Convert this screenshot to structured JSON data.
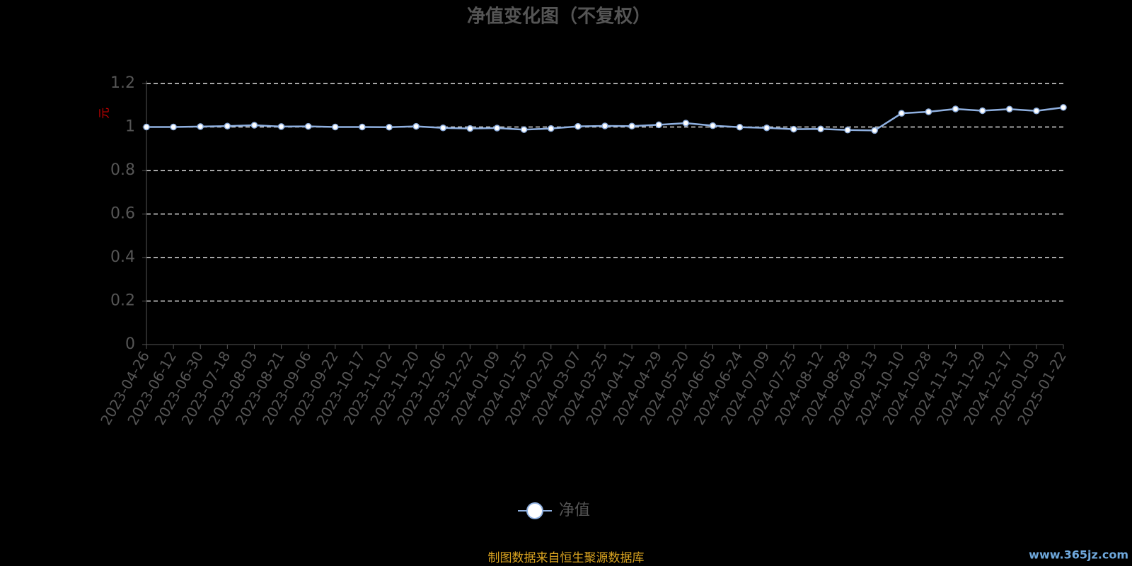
{
  "chart_data": {
    "type": "line",
    "title": "净值变化图（不复权）",
    "y_label": "元",
    "categories": [
      "2023-04-26",
      "2023-06-12",
      "2023-06-30",
      "2023-07-18",
      "2023-08-03",
      "2023-08-21",
      "2023-09-06",
      "2023-09-22",
      "2023-10-17",
      "2023-11-02",
      "2023-11-20",
      "2023-12-06",
      "2023-12-22",
      "2024-01-09",
      "2024-01-25",
      "2024-02-20",
      "2024-03-07",
      "2024-03-25",
      "2024-04-11",
      "2024-04-29",
      "2024-05-20",
      "2024-06-05",
      "2024-06-24",
      "2024-07-09",
      "2024-07-25",
      "2024-08-12",
      "2024-08-28",
      "2024-09-13",
      "2024-10-10",
      "2024-10-28",
      "2024-11-13",
      "2024-11-29",
      "2024-12-17",
      "2025-01-03",
      "2025-01-22"
    ],
    "series": [
      {
        "name": "净值",
        "color": "#8fb0e0",
        "values": [
          1.0,
          1.0,
          1.002,
          1.004,
          1.008,
          1.002,
          1.003,
          1.0,
          1.0,
          0.999,
          1.003,
          0.996,
          0.993,
          0.995,
          0.988,
          0.993,
          1.003,
          1.005,
          1.004,
          1.01,
          1.018,
          1.006,
          0.999,
          0.996,
          0.99,
          0.991,
          0.986,
          0.984,
          1.063,
          1.07,
          1.083,
          1.075,
          1.082,
          1.074,
          1.09
        ]
      }
    ],
    "ylim": [
      0,
      1.2
    ],
    "yticks": [
      0,
      0.2,
      0.4,
      0.6,
      0.8,
      1,
      1.2
    ],
    "grid": true,
    "source": "制图数据来自恒生聚源数据库",
    "watermark": "www.365jz.com"
  }
}
